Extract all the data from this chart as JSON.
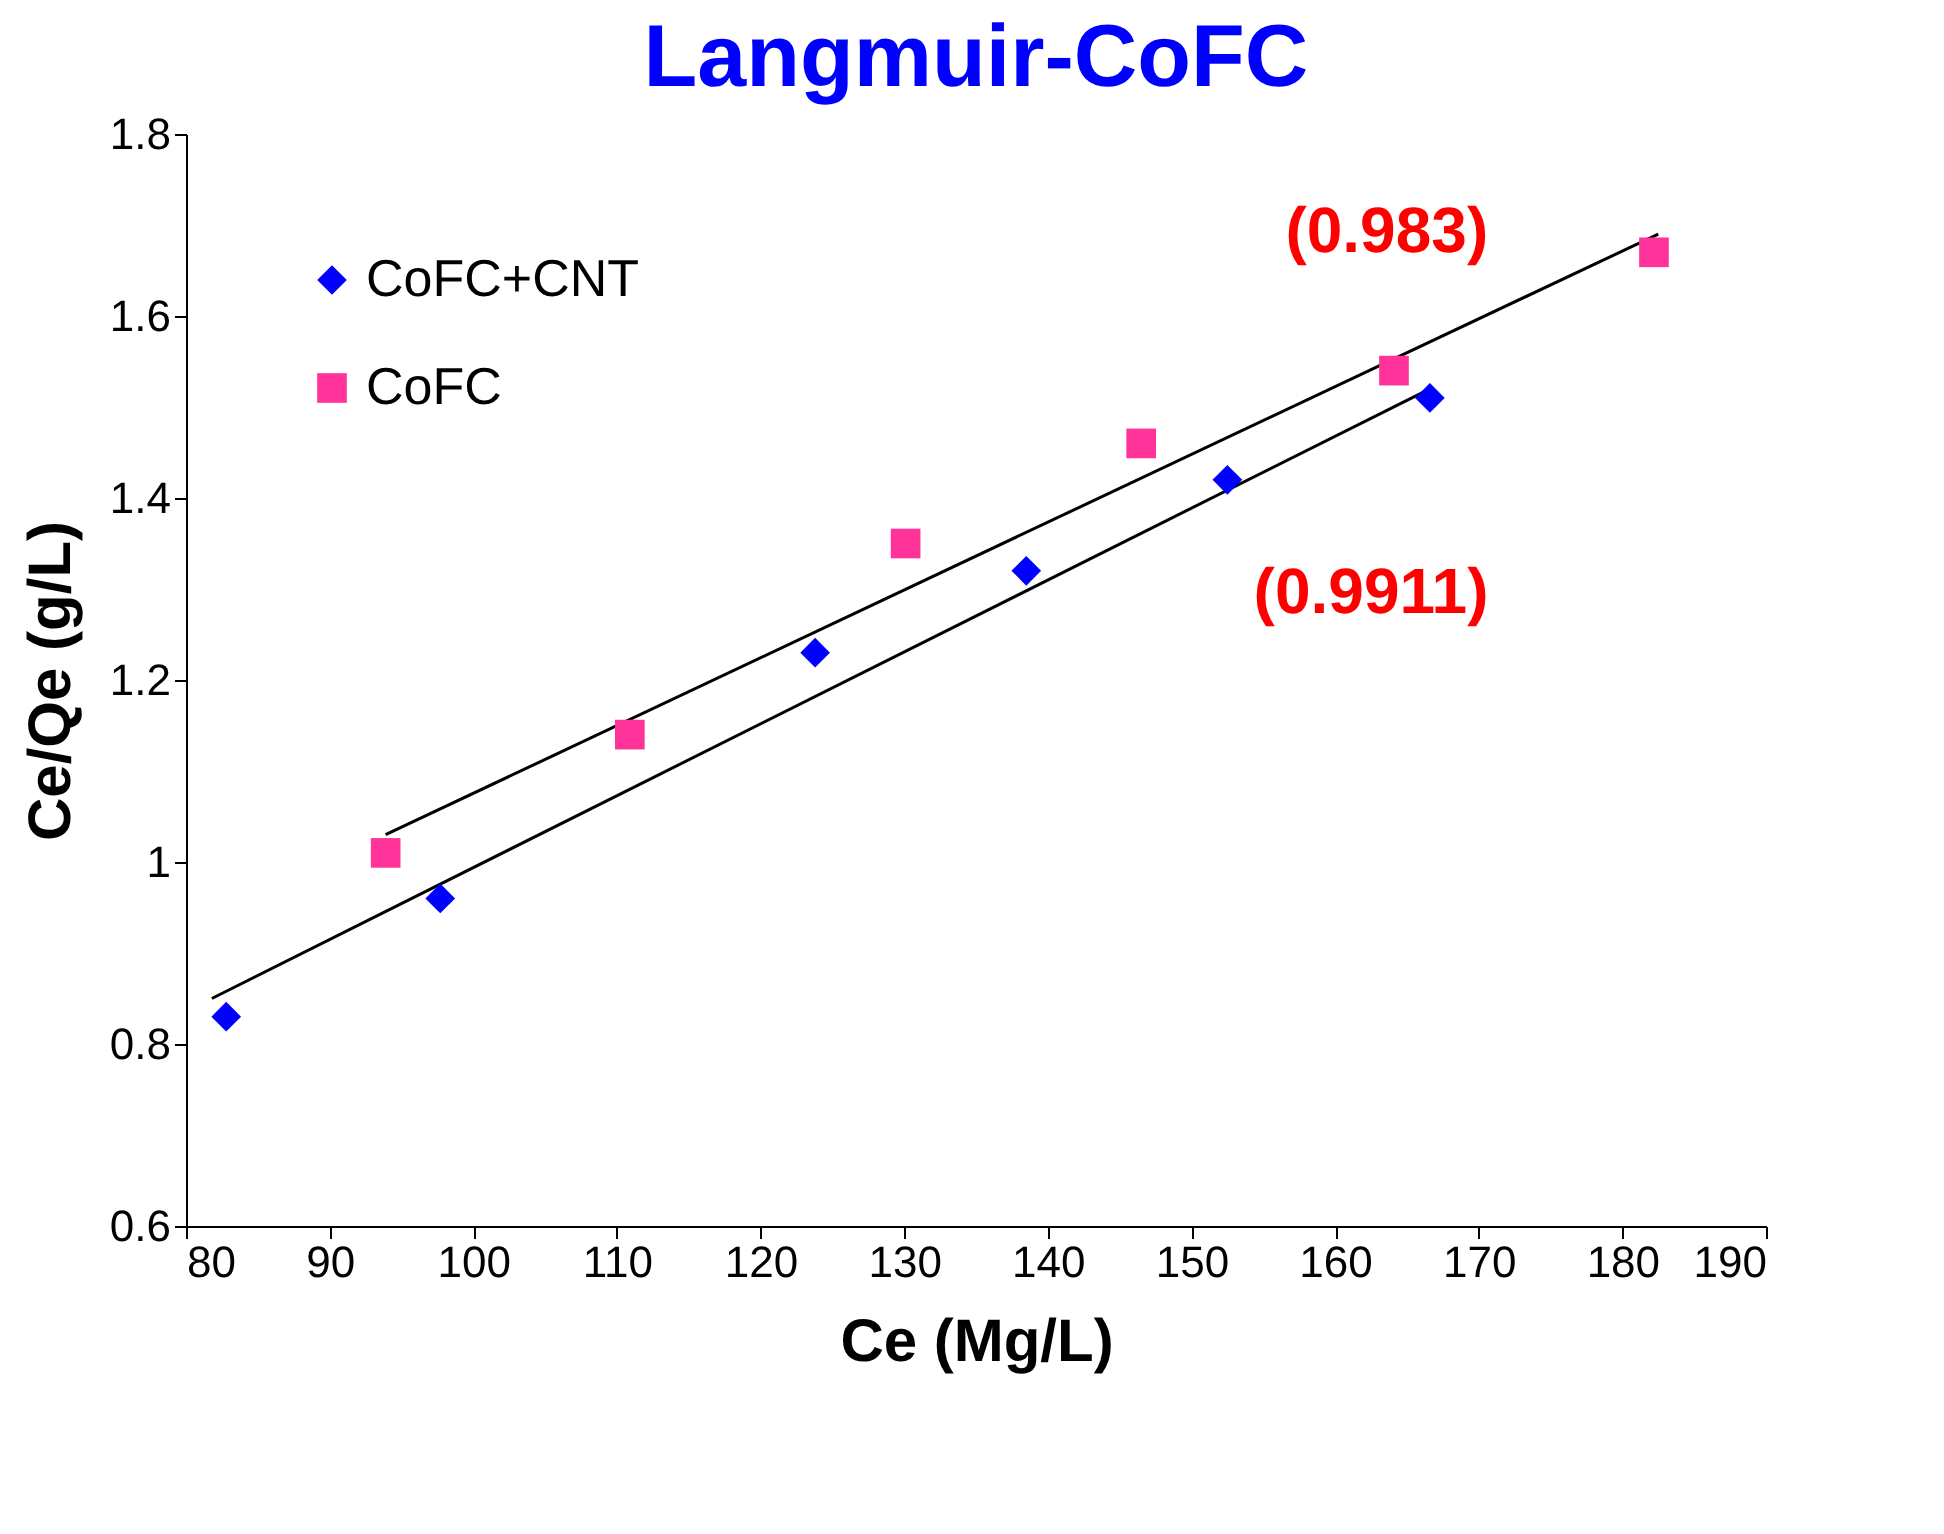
{
  "chart_data": {
    "type": "scatter",
    "title": "Langmuir-CoFC",
    "xlabel": "Ce (Mg/L)",
    "ylabel": "Ce/Qe (g/L)",
    "xlim": [
      80,
      190
    ],
    "xticks": [
      80,
      90,
      100,
      110,
      120,
      130,
      140,
      150,
      160,
      170,
      180,
      190
    ],
    "ylim": [
      0.6,
      1.8
    ],
    "yticks": [
      0.6,
      0.8,
      1,
      1.2,
      1.4,
      1.6,
      1.8
    ],
    "grid": false,
    "legend": "top left",
    "series": [
      {
        "name": "CoFC+CNT",
        "color": "#0000ff",
        "marker": "diamond",
        "x": [
          82.8,
          97.7,
          123.8,
          138.5,
          152.5,
          166.6
        ],
        "values": [
          0.83,
          0.96,
          1.23,
          1.32,
          1.42,
          1.51
        ]
      },
      {
        "name": "CoFC",
        "color": "#ff3399",
        "marker": "square",
        "x": [
          93.9,
          110.9,
          130.1,
          146.5,
          164.1,
          182.2
        ],
        "values": [
          1.01,
          1.14,
          1.35,
          1.46,
          1.54,
          1.67
        ]
      },
      {
        "type": "line",
        "color": "#000000",
        "x": [
          81.8,
          166.6
        ],
        "values": [
          0.85,
          1.52
        ]
      },
      {
        "type": "line",
        "color": "#000000",
        "x": [
          93.9,
          182.5
        ],
        "values": [
          1.03,
          1.69
        ]
      }
    ],
    "annotations": [
      "(0.983)",
      "(0.9911)"
    ]
  }
}
